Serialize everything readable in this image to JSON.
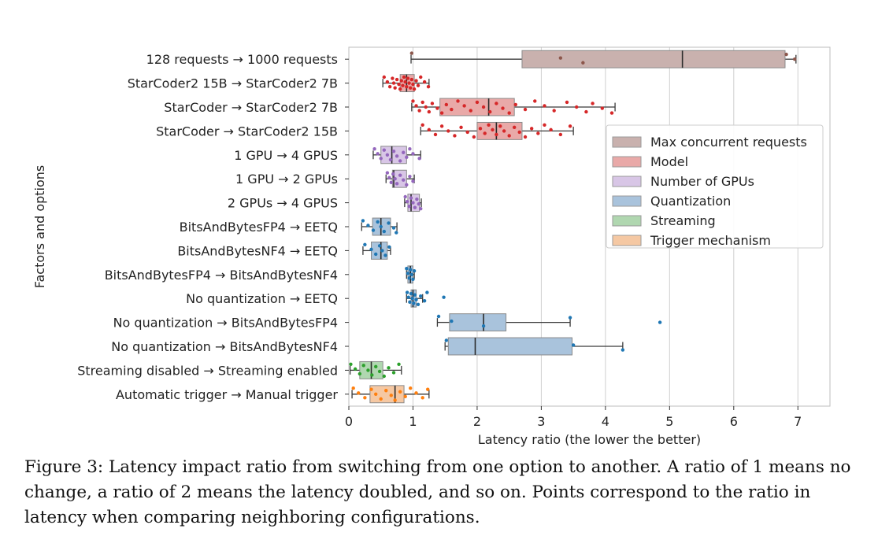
{
  "chart_data": {
    "type": "box",
    "orientation": "horizontal",
    "xlabel": "Latency ratio (the lower the better)",
    "ylabel": "Factors and options",
    "xlim": [
      0,
      7.5
    ],
    "xticks": [
      0,
      1,
      2,
      3,
      4,
      5,
      6,
      7
    ],
    "grid": "vertical",
    "legend_position": "right",
    "legend": [
      {
        "name": "Max concurrent requests",
        "color": "#c9b1ae"
      },
      {
        "name": "Model",
        "color": "#e9a9a8"
      },
      {
        "name": "Number of GPUs",
        "color": "#d8c6e6"
      },
      {
        "name": "Quantization",
        "color": "#a9c3dc"
      },
      {
        "name": "Streaming",
        "color": "#b0d7b0"
      },
      {
        "name": "Trigger mechanism",
        "color": "#f5c8a3"
      }
    ],
    "point_colors": {
      "Max concurrent requests": "#8c564b",
      "Model": "#d62728",
      "Number of GPUs": "#9467bd",
      "Quantization": "#1f77b4",
      "Streaming": "#2ca02c",
      "Trigger mechanism": "#ff7f0e"
    },
    "rows": [
      {
        "label": "128 requests → 1000 requests",
        "group": "Max concurrent requests",
        "whisker_low": 0.97,
        "q1": 2.7,
        "median": 5.2,
        "q3": 6.8,
        "whisker_high": 6.97,
        "points": [
          0.98,
          3.3,
          3.65,
          6.82,
          6.95
        ]
      },
      {
        "label": "StarCoder2 15B → StarCoder2 7B",
        "group": "Model",
        "whisker_low": 0.53,
        "q1": 0.8,
        "median": 0.9,
        "q3": 1.02,
        "whisker_high": 1.25,
        "points": [
          0.55,
          0.6,
          0.64,
          0.68,
          0.7,
          0.72,
          0.75,
          0.78,
          0.8,
          0.82,
          0.84,
          0.86,
          0.88,
          0.9,
          0.92,
          0.94,
          0.96,
          0.98,
          1.0,
          1.02,
          1.05,
          1.08,
          1.12,
          1.18,
          1.24
        ]
      },
      {
        "label": "StarCoder → StarCoder2 7B",
        "group": "Model",
        "whisker_low": 0.98,
        "q1": 1.42,
        "median": 2.18,
        "q3": 2.58,
        "whisker_high": 4.15,
        "points": [
          1.0,
          1.05,
          1.1,
          1.15,
          1.2,
          1.25,
          1.3,
          1.38,
          1.45,
          1.52,
          1.6,
          1.7,
          1.8,
          1.9,
          2.0,
          2.1,
          2.2,
          2.3,
          2.4,
          2.5,
          2.6,
          2.75,
          2.9,
          3.05,
          3.2,
          3.4,
          3.55,
          3.7,
          3.8,
          3.95,
          4.1
        ]
      },
      {
        "label": "StarCoder → StarCoder2 15B",
        "group": "Model",
        "whisker_low": 1.12,
        "q1": 2.0,
        "median": 2.3,
        "q3": 2.7,
        "whisker_high": 3.5,
        "points": [
          1.15,
          1.25,
          1.35,
          1.45,
          1.55,
          1.65,
          1.75,
          1.85,
          1.95,
          2.05,
          2.12,
          2.18,
          2.24,
          2.3,
          2.36,
          2.42,
          2.5,
          2.58,
          2.66,
          2.75,
          2.85,
          2.95,
          3.05,
          3.15,
          3.3,
          3.45
        ]
      },
      {
        "label": "1 GPU → 4 GPUS",
        "group": "Number of GPUs",
        "whisker_low": 0.38,
        "q1": 0.5,
        "median": 0.67,
        "q3": 0.9,
        "whisker_high": 1.12,
        "points": [
          0.4,
          0.45,
          0.5,
          0.55,
          0.6,
          0.65,
          0.7,
          0.75,
          0.8,
          0.85,
          0.9,
          0.95,
          1.0,
          1.1
        ]
      },
      {
        "label": "1 GPU → 2 GPUs",
        "group": "Number of GPUs",
        "whisker_low": 0.58,
        "q1": 0.68,
        "median": 0.7,
        "q3": 0.9,
        "whisker_high": 1.02,
        "points": [
          0.6,
          0.63,
          0.66,
          0.69,
          0.72,
          0.75,
          0.8,
          0.85,
          0.9,
          0.95,
          1.0
        ]
      },
      {
        "label": "2 GPUs → 4 GPUS",
        "group": "Number of GPUs",
        "whisker_low": 0.87,
        "q1": 0.92,
        "median": 0.97,
        "q3": 1.1,
        "whisker_high": 1.13,
        "points": [
          0.88,
          0.91,
          0.94,
          0.97,
          1.0,
          1.03,
          1.06,
          1.09,
          1.12
        ]
      },
      {
        "label": "BitsAndBytesFP4 → EETQ",
        "group": "Quantization",
        "whisker_low": 0.2,
        "q1": 0.37,
        "median": 0.5,
        "q3": 0.65,
        "whisker_high": 0.75,
        "points": [
          0.22,
          0.3,
          0.38,
          0.45,
          0.5,
          0.55,
          0.62,
          0.7,
          0.74
        ]
      },
      {
        "label": "BitsAndBytesNF4 → EETQ",
        "group": "Quantization",
        "whisker_low": 0.22,
        "q1": 0.35,
        "median": 0.5,
        "q3": 0.6,
        "whisker_high": 0.65,
        "points": [
          0.25,
          0.35,
          0.42,
          0.48,
          0.52,
          0.57,
          0.63
        ]
      },
      {
        "label": "BitsAndBytesFP4 → BitsAndBytesNF4",
        "group": "Quantization",
        "whisker_low": 0.9,
        "q1": 0.92,
        "median": 0.96,
        "q3": 1.0,
        "whisker_high": 1.02,
        "points": [
          0.9,
          0.92,
          0.94,
          0.96,
          0.98,
          1.0,
          1.02
        ]
      },
      {
        "label": "No quantization → EETQ",
        "group": "Quantization",
        "whisker_low": 0.9,
        "q1": 0.97,
        "median": 1.0,
        "q3": 1.05,
        "whisker_high": 1.15,
        "points": [
          0.91,
          0.93,
          0.95,
          0.97,
          0.99,
          1.01,
          1.03,
          1.05,
          1.08,
          1.12,
          1.18,
          1.22,
          1.48
        ]
      },
      {
        "label": "No quantization → BitsAndBytesFP4",
        "group": "Quantization",
        "whisker_low": 1.38,
        "q1": 1.57,
        "median": 2.1,
        "q3": 2.45,
        "whisker_high": 3.45,
        "points": [
          1.4,
          1.6,
          2.1,
          3.45,
          4.85
        ]
      },
      {
        "label": "No quantization → BitsAndBytesNF4",
        "group": "Quantization",
        "whisker_low": 1.5,
        "q1": 1.55,
        "median": 1.97,
        "q3": 3.48,
        "whisker_high": 4.27,
        "points": [
          1.52,
          3.5,
          4.27
        ]
      },
      {
        "label": "Streaming disabled → Streaming enabled",
        "group": "Streaming",
        "whisker_low": 0.02,
        "q1": 0.17,
        "median": 0.35,
        "q3": 0.53,
        "whisker_high": 0.82,
        "points": [
          0.03,
          0.1,
          0.17,
          0.23,
          0.3,
          0.36,
          0.42,
          0.48,
          0.55,
          0.62,
          0.7,
          0.78
        ]
      },
      {
        "label": "Automatic trigger → Manual trigger",
        "group": "Trigger mechanism",
        "whisker_low": 0.05,
        "q1": 0.33,
        "median": 0.72,
        "q3": 0.86,
        "whisker_high": 1.25,
        "points": [
          0.07,
          0.15,
          0.25,
          0.35,
          0.42,
          0.5,
          0.58,
          0.66,
          0.72,
          0.8,
          0.88,
          0.96,
          1.05,
          1.15,
          1.23
        ]
      }
    ]
  },
  "caption": "Figure 3: Latency impact ratio from switching from one option to another. A ratio of 1 means no change, a ratio of 2 means the latency doubled, and so on. Points correspond to the ratio in latency when comparing neighboring configurations."
}
